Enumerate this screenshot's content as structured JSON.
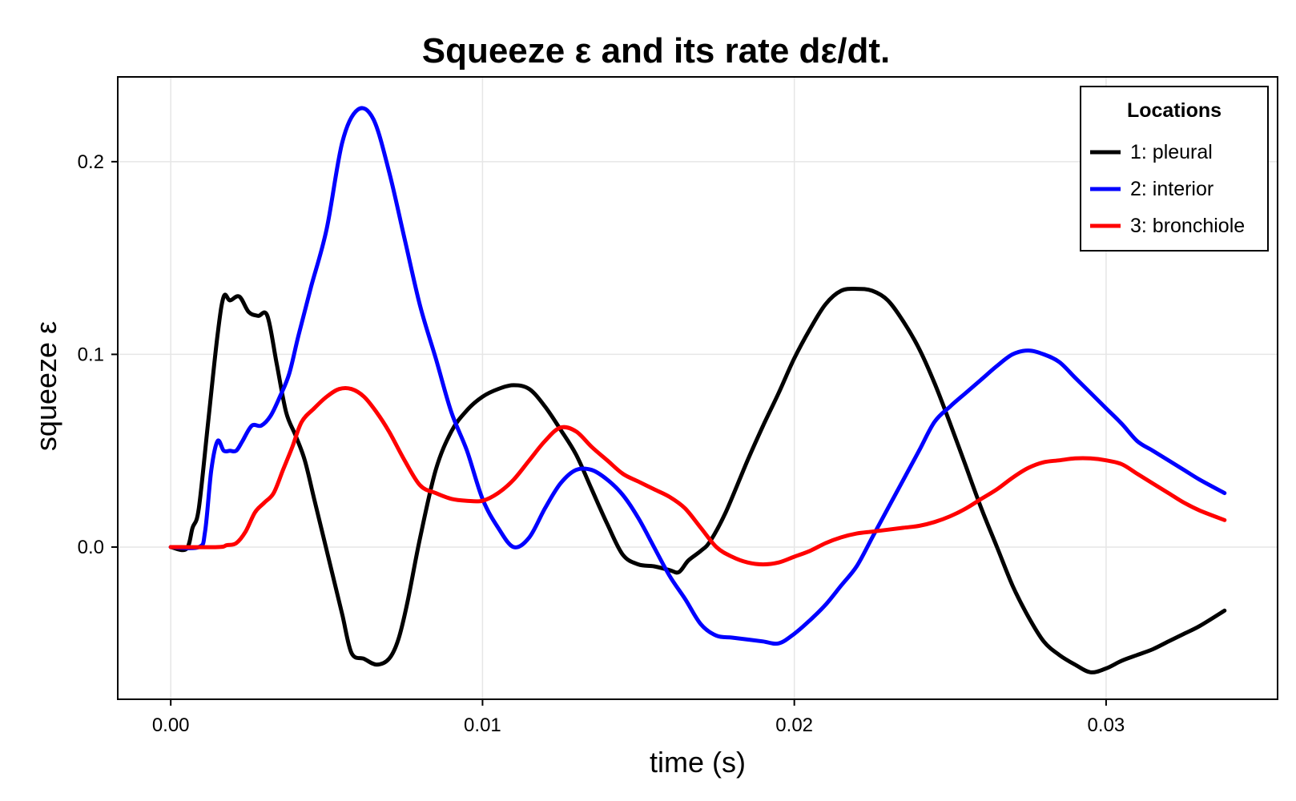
{
  "chart_data": {
    "type": "line",
    "title": "Squeeze ε and its rate dε/dt.",
    "xlabel": "time (s)",
    "ylabel": "squeeze ε",
    "xlim": [
      -0.0017,
      0.0355
    ],
    "ylim": [
      -0.079,
      0.244
    ],
    "xticks": [
      0.0,
      0.01,
      0.02,
      0.03
    ],
    "xtick_labels": [
      "0.00",
      "0.01",
      "0.02",
      "0.03"
    ],
    "yticks": [
      0.0,
      0.1,
      0.2
    ],
    "ytick_labels": [
      "0.0",
      "0.1",
      "0.2"
    ],
    "grid": true,
    "legend": {
      "title": "Locations",
      "position": "top-right"
    },
    "series": [
      {
        "name": "1: pleural",
        "color": "#000000",
        "x": [
          0.0,
          0.0005,
          0.0007,
          0.0009,
          0.0012,
          0.0015,
          0.0017,
          0.0019,
          0.0022,
          0.0025,
          0.0028,
          0.0031,
          0.0034,
          0.0037,
          0.004,
          0.0043,
          0.0046,
          0.0049,
          0.0052,
          0.0055,
          0.0058,
          0.0062,
          0.0066,
          0.007,
          0.0073,
          0.0076,
          0.008,
          0.0085,
          0.009,
          0.0095,
          0.01,
          0.0105,
          0.011,
          0.0115,
          0.012,
          0.0125,
          0.013,
          0.0135,
          0.014,
          0.0145,
          0.015,
          0.0155,
          0.016,
          0.0163,
          0.0166,
          0.017,
          0.0173,
          0.0178,
          0.0185,
          0.019,
          0.0195,
          0.02,
          0.0205,
          0.021,
          0.0215,
          0.022,
          0.0225,
          0.023,
          0.0235,
          0.024,
          0.0245,
          0.025,
          0.0255,
          0.026,
          0.0265,
          0.027,
          0.0275,
          0.028,
          0.0285,
          0.029,
          0.0295,
          0.03,
          0.0305,
          0.031,
          0.0315,
          0.032,
          0.0325,
          0.033,
          0.0338
        ],
        "y": [
          0.0,
          -0.001,
          0.01,
          0.02,
          0.065,
          0.11,
          0.13,
          0.128,
          0.13,
          0.122,
          0.12,
          0.12,
          0.095,
          0.07,
          0.058,
          0.045,
          0.025,
          0.005,
          -0.015,
          -0.035,
          -0.055,
          -0.058,
          -0.061,
          -0.058,
          -0.048,
          -0.028,
          0.005,
          0.04,
          0.06,
          0.071,
          0.078,
          0.082,
          0.084,
          0.082,
          0.073,
          0.061,
          0.048,
          0.03,
          0.012,
          -0.004,
          -0.009,
          -0.01,
          -0.012,
          -0.013,
          -0.007,
          -0.002,
          0.003,
          0.018,
          0.045,
          0.063,
          0.08,
          0.098,
          0.113,
          0.126,
          0.133,
          0.134,
          0.133,
          0.128,
          0.117,
          0.103,
          0.085,
          0.064,
          0.042,
          0.02,
          0.0,
          -0.02,
          -0.036,
          -0.049,
          -0.056,
          -0.061,
          -0.065,
          -0.063,
          -0.059,
          -0.056,
          -0.053,
          -0.049,
          -0.045,
          -0.041,
          -0.033
        ]
      },
      {
        "name": "2: interior",
        "color": "#0000ff",
        "x": [
          0.0,
          0.0009,
          0.0011,
          0.0013,
          0.0015,
          0.0017,
          0.0019,
          0.0021,
          0.0023,
          0.0026,
          0.0029,
          0.0032,
          0.0035,
          0.0038,
          0.0041,
          0.0045,
          0.005,
          0.0055,
          0.006,
          0.0065,
          0.007,
          0.0075,
          0.008,
          0.0085,
          0.009,
          0.0095,
          0.01,
          0.0105,
          0.011,
          0.0115,
          0.012,
          0.0125,
          0.013,
          0.0135,
          0.014,
          0.0145,
          0.015,
          0.0155,
          0.016,
          0.0165,
          0.017,
          0.0175,
          0.018,
          0.0185,
          0.019,
          0.0195,
          0.02,
          0.0205,
          0.021,
          0.0215,
          0.022,
          0.0225,
          0.023,
          0.0235,
          0.024,
          0.0245,
          0.025,
          0.0255,
          0.026,
          0.0265,
          0.027,
          0.0275,
          0.028,
          0.0285,
          0.029,
          0.0295,
          0.03,
          0.0305,
          0.031,
          0.0315,
          0.032,
          0.0325,
          0.033,
          0.0338
        ],
        "y": [
          0.0,
          0.0,
          0.008,
          0.04,
          0.055,
          0.05,
          0.05,
          0.05,
          0.055,
          0.063,
          0.063,
          0.068,
          0.078,
          0.09,
          0.11,
          0.135,
          0.165,
          0.21,
          0.227,
          0.222,
          0.195,
          0.16,
          0.125,
          0.098,
          0.07,
          0.05,
          0.025,
          0.01,
          0.0,
          0.005,
          0.02,
          0.033,
          0.04,
          0.04,
          0.035,
          0.027,
          0.015,
          0.0,
          -0.015,
          -0.027,
          -0.04,
          -0.046,
          -0.047,
          -0.048,
          -0.049,
          -0.05,
          -0.045,
          -0.038,
          -0.03,
          -0.02,
          -0.01,
          0.005,
          0.02,
          0.035,
          0.05,
          0.065,
          0.073,
          0.08,
          0.087,
          0.094,
          0.1,
          0.102,
          0.1,
          0.096,
          0.088,
          0.08,
          0.072,
          0.064,
          0.055,
          0.05,
          0.045,
          0.04,
          0.035,
          0.028
        ]
      },
      {
        "name": "3: bronchiole",
        "color": "#ff0000",
        "x": [
          0.0,
          0.0015,
          0.0018,
          0.0021,
          0.0024,
          0.0027,
          0.003,
          0.0033,
          0.0036,
          0.0039,
          0.0042,
          0.0046,
          0.005,
          0.0054,
          0.0058,
          0.0062,
          0.0066,
          0.007,
          0.0075,
          0.008,
          0.0085,
          0.009,
          0.0095,
          0.01,
          0.0105,
          0.011,
          0.0115,
          0.012,
          0.0125,
          0.013,
          0.0135,
          0.014,
          0.0145,
          0.015,
          0.0155,
          0.016,
          0.0165,
          0.017,
          0.0175,
          0.018,
          0.0185,
          0.019,
          0.0195,
          0.02,
          0.0205,
          0.021,
          0.0215,
          0.022,
          0.0225,
          0.023,
          0.0235,
          0.024,
          0.0245,
          0.025,
          0.0255,
          0.026,
          0.0265,
          0.027,
          0.0275,
          0.028,
          0.0285,
          0.029,
          0.0295,
          0.03,
          0.0305,
          0.031,
          0.0315,
          0.032,
          0.0325,
          0.033,
          0.0338
        ],
        "y": [
          0.0,
          0.0,
          0.001,
          0.002,
          0.008,
          0.018,
          0.023,
          0.028,
          0.04,
          0.052,
          0.065,
          0.072,
          0.078,
          0.082,
          0.082,
          0.078,
          0.07,
          0.06,
          0.045,
          0.032,
          0.028,
          0.025,
          0.024,
          0.024,
          0.028,
          0.035,
          0.045,
          0.055,
          0.062,
          0.06,
          0.052,
          0.045,
          0.038,
          0.034,
          0.03,
          0.026,
          0.02,
          0.01,
          0.0,
          -0.005,
          -0.008,
          -0.009,
          -0.008,
          -0.005,
          -0.002,
          0.002,
          0.005,
          0.007,
          0.008,
          0.009,
          0.01,
          0.011,
          0.013,
          0.016,
          0.02,
          0.025,
          0.03,
          0.036,
          0.041,
          0.044,
          0.045,
          0.046,
          0.046,
          0.045,
          0.043,
          0.038,
          0.033,
          0.028,
          0.023,
          0.019,
          0.014
        ]
      }
    ]
  }
}
